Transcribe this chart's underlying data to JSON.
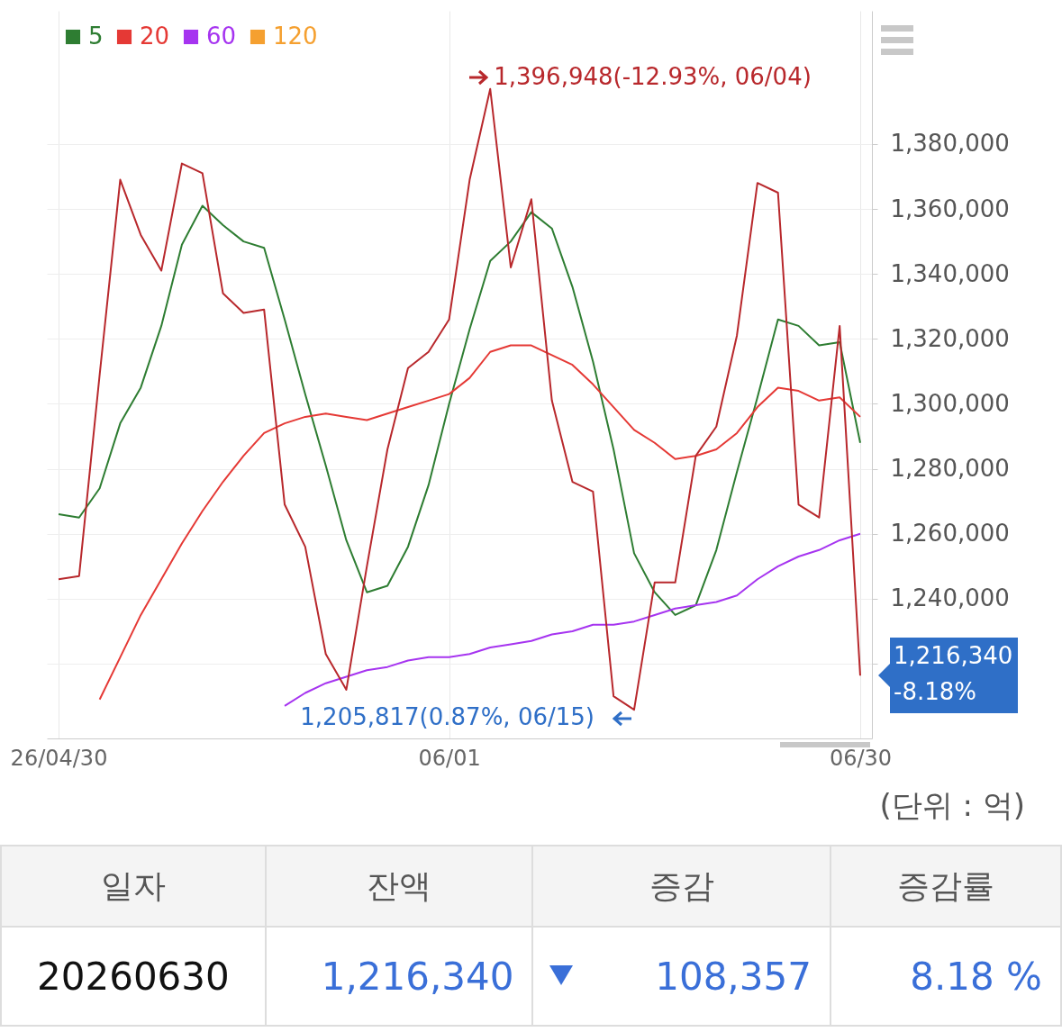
{
  "chart_data": {
    "type": "line",
    "categories": [
      "26/04/30",
      null,
      null,
      null,
      null,
      null,
      null,
      null,
      null,
      null,
      null,
      null,
      null,
      null,
      null,
      null,
      null,
      null,
      null,
      "06/01",
      null,
      null,
      null,
      null,
      null,
      null,
      null,
      null,
      null,
      null,
      null,
      null,
      null,
      null,
      null,
      null,
      null,
      null,
      null,
      "06/30"
    ],
    "series": [
      {
        "color": "#b8282c",
        "values": [
          1246000,
          1247000,
          1309000,
          1369000,
          1352000,
          1341000,
          1374000,
          1371000,
          1334000,
          1328000,
          1329000,
          1269000,
          1256000,
          1223000,
          1212000,
          1250000,
          1286000,
          1311000,
          1316000,
          1326000,
          1369000,
          1396948,
          1342000,
          1363000,
          1301000,
          1276000,
          1273000,
          1210000,
          1205817,
          1245000,
          1245000,
          1284000,
          1293000,
          1321000,
          1368000,
          1365000,
          1269000,
          1265000,
          1324000,
          1216340
        ]
      },
      {
        "name": "5",
        "color": "#2e7d32",
        "values": [
          1266000,
          1265000,
          1274000,
          1294000,
          1305000,
          1324000,
          1349000,
          1361000,
          1355000,
          1350000,
          1348000,
          1326000,
          1303000,
          1281000,
          1258000,
          1242000,
          1244000,
          1256000,
          1275000,
          1300000,
          1323000,
          1344000,
          1350000,
          1359000,
          1354000,
          1336000,
          1313000,
          1286000,
          1254000,
          1242000,
          1235000,
          1238000,
          1255000,
          1279000,
          1302000,
          1326000,
          1324000,
          1318000,
          1319000,
          1288000
        ]
      },
      {
        "name": "20",
        "color": "#e53935",
        "values": [
          null,
          null,
          1209000,
          1222000,
          1235000,
          1246000,
          1257000,
          1267000,
          1276000,
          1284000,
          1291000,
          1294000,
          1296000,
          1297000,
          1296000,
          1295000,
          1297000,
          1299000,
          1301000,
          1303000,
          1308000,
          1316000,
          1318000,
          1318000,
          1315000,
          1312000,
          1306000,
          1299000,
          1292000,
          1288000,
          1283000,
          1284000,
          1286000,
          1291000,
          1299000,
          1305000,
          1304000,
          1301000,
          1302000,
          1296000
        ]
      },
      {
        "name": "60",
        "color": "#a634f0",
        "values": [
          null,
          null,
          null,
          null,
          null,
          null,
          null,
          null,
          null,
          null,
          null,
          1207000,
          1211000,
          1214000,
          1216000,
          1218000,
          1219000,
          1221000,
          1222000,
          1222000,
          1223000,
          1225000,
          1226000,
          1227000,
          1229000,
          1230000,
          1232000,
          1232000,
          1233000,
          1235000,
          1237000,
          1238000,
          1239000,
          1241000,
          1246000,
          1250000,
          1253000,
          1255000,
          1258000,
          1260000
        ]
      },
      {
        "name": "120",
        "color": "#f5a030",
        "values": [
          null,
          null,
          null,
          null,
          null,
          null,
          null,
          null,
          null,
          null,
          null,
          null,
          null,
          null,
          null,
          null,
          null,
          null,
          null,
          null,
          null,
          null,
          null,
          null,
          null,
          null,
          null,
          null,
          null,
          null,
          null,
          null,
          null,
          null,
          null,
          null,
          null,
          null,
          null,
          null
        ]
      }
    ],
    "ylim": [
      1197000,
      1421000
    ],
    "yticks": [
      {
        "value": 1220000,
        "label": null
      },
      {
        "value": 1240000,
        "label": "1,240,000"
      },
      {
        "value": 1260000,
        "label": "1,260,000"
      },
      {
        "value": 1280000,
        "label": "1,280,000"
      },
      {
        "value": 1300000,
        "label": "1,300,000"
      },
      {
        "value": 1320000,
        "label": "1,320,000"
      },
      {
        "value": 1340000,
        "label": "1,340,000"
      },
      {
        "value": 1360000,
        "label": "1,360,000"
      },
      {
        "value": 1380000,
        "label": "1,380,000"
      }
    ],
    "grid": true,
    "legend": "top left",
    "annotations": [
      "1,396,948(-12.93%, 06/04)",
      "1,205,817(0.87%, 06/15)",
      "1,216,340\n-8.18%",
      "(단위 : 억)",
      "일자",
      "잔액",
      "증감",
      "증감률",
      "20260630",
      "1,216,340",
      "108,357",
      "8.18 %"
    ]
  }
}
